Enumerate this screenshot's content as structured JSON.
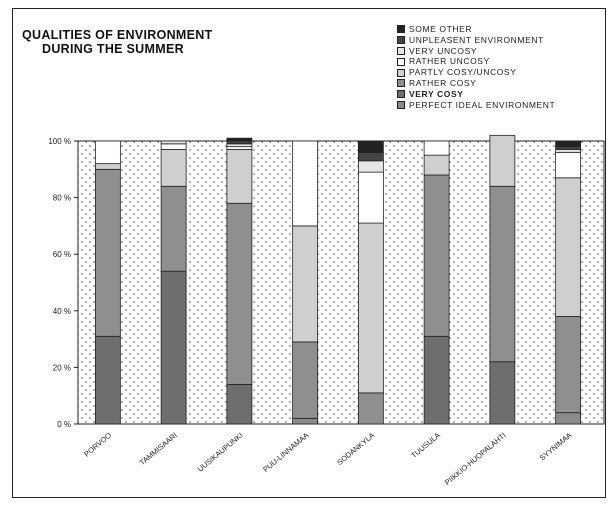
{
  "chart_data": {
    "type": "bar",
    "stacked": true,
    "title": "QUALITIES OF ENVIRONMENT DURING THE SUMMER",
    "title_lines": [
      "QUALITIES OF ENVIRONMENT",
      "DURING THE SUMMER"
    ],
    "categories": [
      "PORVOO",
      "TAMMISAARI",
      "UUSIKAUPUNKI",
      "PUU-LINNAMAA",
      "SODANKYLA",
      "TUUSULA",
      "PIIKKIO-HUOPALAHTI",
      "SYYNIMAA"
    ],
    "ylim": [
      0,
      100
    ],
    "yticks": [
      "0 %",
      "20 %",
      "40 %",
      "60 %",
      "80 %",
      "100 %"
    ],
    "grid": false,
    "legend_position": "top-right",
    "series": [
      {
        "name": "PERFECT IDEAL ENVIRONMENT",
        "color": "#8a8a8a",
        "values": [
          0,
          0,
          0,
          2,
          0,
          0,
          0,
          4
        ]
      },
      {
        "name": "VERY COSY",
        "color": "#6e6e6e",
        "values": [
          31,
          54,
          14,
          0,
          0,
          31,
          22,
          0
        ]
      },
      {
        "name": "RATHER COSY",
        "color": "#8f8f8f",
        "values": [
          59,
          30,
          64,
          27,
          11,
          57,
          62,
          34
        ]
      },
      {
        "name": "PARTLY COSY/UNCOSY",
        "color": "#cfcfcf",
        "values": [
          2,
          13,
          19,
          41,
          60,
          7,
          18,
          49
        ]
      },
      {
        "name": "RATHER UNCOSY",
        "color": "#ffffff",
        "values": [
          8,
          2,
          1,
          30,
          18,
          5,
          0,
          9
        ]
      },
      {
        "name": "VERY UNCOSY",
        "color": "#e6e6e6",
        "values": [
          0,
          1,
          1,
          0,
          4,
          0,
          0,
          1
        ]
      },
      {
        "name": "UNPLEASENT ENVIRONMENT",
        "color": "#444444",
        "values": [
          0,
          0,
          1,
          0,
          3,
          0,
          0,
          1
        ]
      },
      {
        "name": "SOME OTHER",
        "color": "#222222",
        "values": [
          0,
          0,
          1,
          0,
          4,
          0,
          0,
          2
        ]
      }
    ],
    "legend_order": [
      "SOME OTHER",
      "UNPLEASENT ENVIRONMENT",
      "VERY UNCOSY",
      "RATHER UNCOSY",
      "PARTLY COSY/UNCOSY",
      "RATHER COSY",
      "VERY COSY",
      "PERFECT IDEAL ENVIRONMENT"
    ]
  }
}
